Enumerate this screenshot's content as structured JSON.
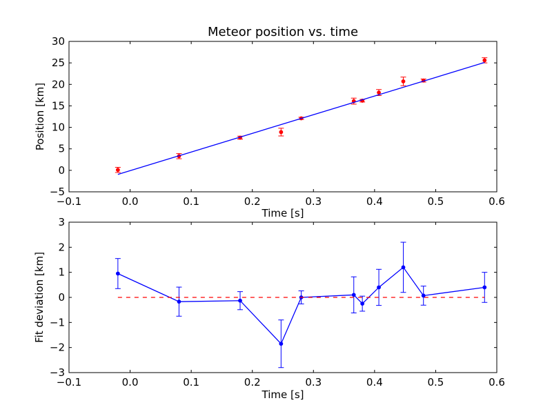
{
  "chart_data": [
    {
      "type": "scatter",
      "title": "Meteor position vs. time",
      "xlabel": "Time [s]",
      "ylabel": "Position [km]",
      "xlim": [
        -0.1,
        0.6
      ],
      "ylim": [
        -5,
        30
      ],
      "xticks": [
        "−0.1",
        "0.0",
        "0.1",
        "0.2",
        "0.3",
        "0.4",
        "0.5",
        "0.6"
      ],
      "yticks": [
        "−5",
        "0",
        "5",
        "10",
        "15",
        "20",
        "25",
        "30"
      ],
      "grid": false,
      "colors": {
        "points": "#ff0000",
        "errorbars": "#ff0000",
        "fit_line": "#0000ff"
      },
      "series": [
        {
          "kind": "points-with-errorbars",
          "x": [
            -0.02,
            0.08,
            0.18,
            0.247,
            0.28,
            0.366,
            0.38,
            0.407,
            0.447,
            0.48,
            0.58
          ],
          "y": [
            0.1,
            3.3,
            7.6,
            8.9,
            12.1,
            16.1,
            16.2,
            18.1,
            20.7,
            20.9,
            25.6
          ],
          "yerr": [
            0.6,
            0.6,
            0.35,
            0.9,
            0.25,
            0.7,
            0.3,
            0.7,
            1.0,
            0.35,
            0.6
          ]
        },
        {
          "kind": "fit-line",
          "x": [
            -0.02,
            0.58
          ],
          "y": [
            -0.95,
            25.1
          ]
        }
      ]
    },
    {
      "type": "line",
      "xlabel": "Time [s]",
      "ylabel": "Fit deviation [km]",
      "xlim": [
        -0.1,
        0.6
      ],
      "ylim": [
        -3,
        3
      ],
      "xticks": [
        "−0.1",
        "0.0",
        "0.1",
        "0.2",
        "0.3",
        "0.4",
        "0.5",
        "0.6"
      ],
      "yticks": [
        "−3",
        "−2",
        "−1",
        "0",
        "1",
        "2",
        "3"
      ],
      "grid": false,
      "colors": {
        "line": "#0000ff",
        "zero_line": "#ff0000"
      },
      "series": [
        {
          "kind": "line-with-errorbars",
          "x": [
            -0.02,
            0.08,
            0.18,
            0.247,
            0.28,
            0.366,
            0.38,
            0.407,
            0.447,
            0.48,
            0.58
          ],
          "y": [
            0.95,
            -0.17,
            -0.13,
            -1.85,
            0.0,
            0.1,
            -0.25,
            0.4,
            1.2,
            0.07,
            0.4
          ],
          "yerr": [
            0.6,
            0.58,
            0.36,
            0.95,
            0.26,
            0.72,
            0.3,
            0.72,
            1.0,
            0.38,
            0.6
          ]
        },
        {
          "kind": "zero-reference",
          "style": "dashed",
          "x": [
            -0.02,
            0.58
          ],
          "y": [
            0,
            0
          ]
        }
      ]
    }
  ]
}
